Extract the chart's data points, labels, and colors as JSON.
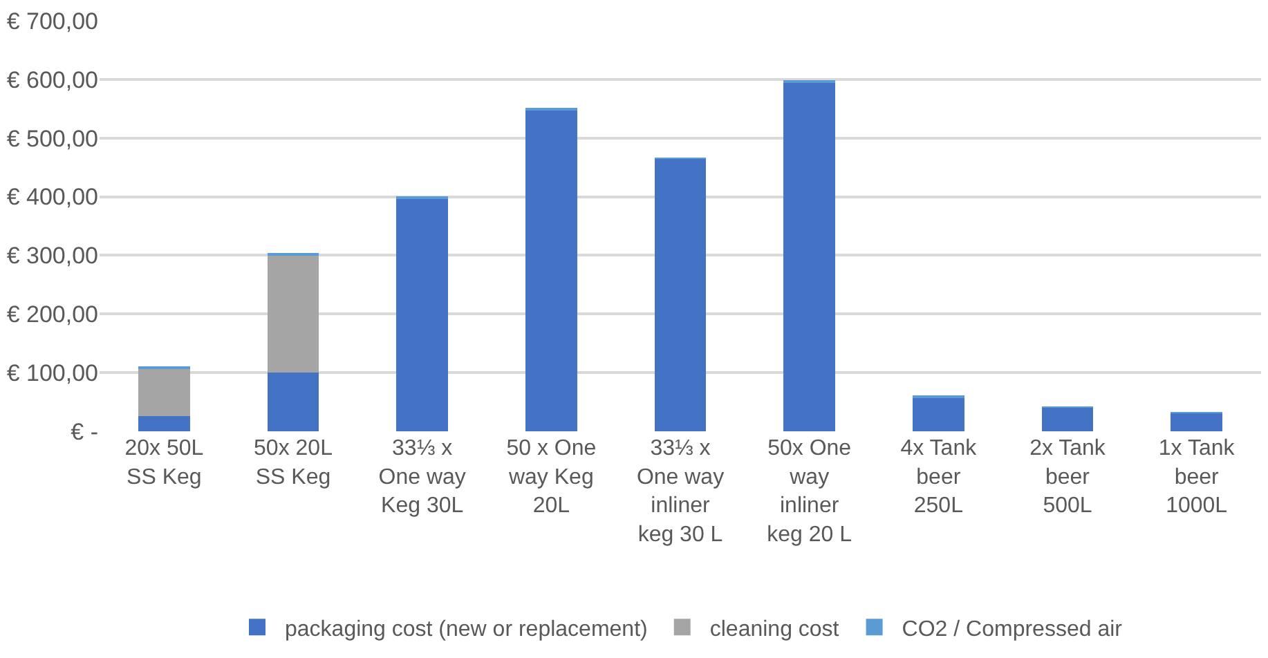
{
  "chart_data": {
    "type": "bar",
    "stacked": true,
    "categories": [
      "20x 50L SS Keg",
      "50x 20L SS Keg",
      "33⅓ x One way Keg 30L",
      "50 x One way Keg 20L",
      "33⅓ x One way inliner keg 30 L",
      "50x One way inliner keg 20 L",
      "4x Tank beer 250L",
      "2x Tank beer 500L",
      "1x Tank beer 1000L"
    ],
    "series": [
      {
        "name": "packaging cost (new or replacement)",
        "color": "#4472c4",
        "values": [
          26,
          100,
          398,
          547,
          465,
          596,
          58,
          41,
          31
        ]
      },
      {
        "name": "cleaning cost",
        "color": "#a5a5a5",
        "values": [
          81,
          200,
          0,
          0,
          0,
          0,
          0,
          0,
          0
        ]
      },
      {
        "name": "CO2 / Compressed air",
        "color": "#5b9bd5",
        "values": [
          2,
          4,
          1,
          4,
          1,
          1,
          1,
          1,
          1
        ]
      }
    ],
    "ylim": [
      0,
      700
    ],
    "yticks": [
      {
        "value": 0,
        "label": "€ -"
      },
      {
        "value": 100,
        "label": "€ 100,00"
      },
      {
        "value": 200,
        "label": "€ 200,00"
      },
      {
        "value": 300,
        "label": "€ 300,00"
      },
      {
        "value": 400,
        "label": "€ 400,00"
      },
      {
        "value": 500,
        "label": "€ 500,00"
      },
      {
        "value": 600,
        "label": "€ 600,00"
      },
      {
        "value": 700,
        "label": "€ 700,00"
      }
    ],
    "grid": "y",
    "legend": "bottom"
  }
}
